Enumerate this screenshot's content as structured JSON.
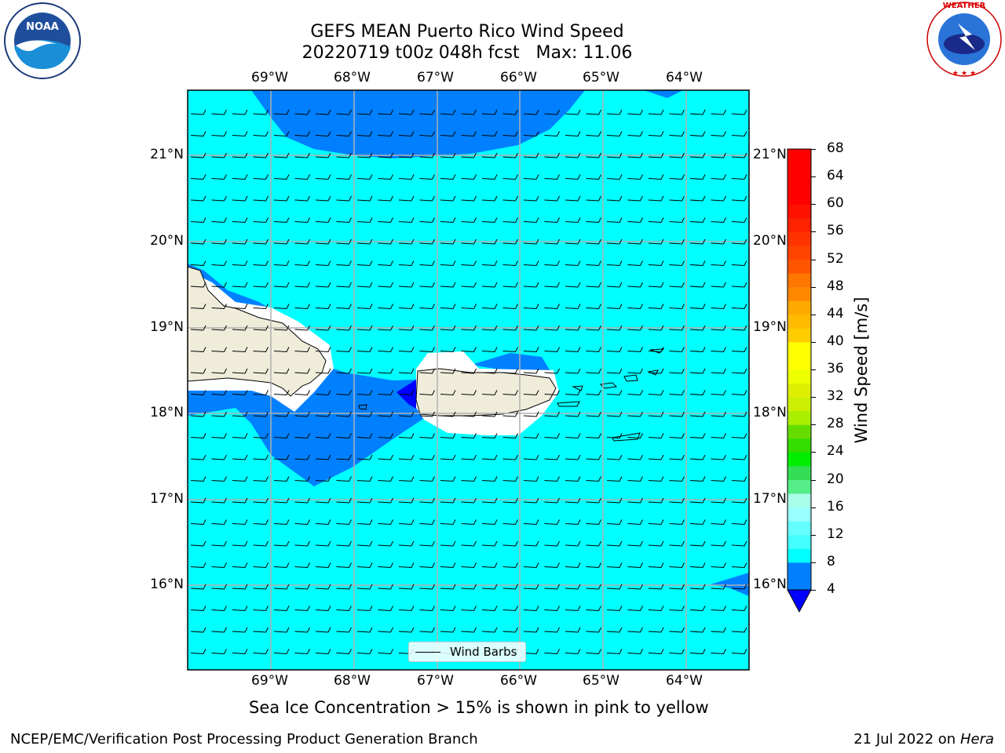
{
  "header": {
    "title_line1": "GEFS MEAN Puerto Rico Wind Speed",
    "title_line2": "20220719 t00z 048h fcst   Max: 11.06"
  },
  "logos": {
    "noaa_text": "NOAA",
    "nws_text": "NATIONAL WEATHER SERVICE"
  },
  "map": {
    "lon_labels": [
      "69°W",
      "68°W",
      "67°W",
      "66°W",
      "65°W",
      "64°W"
    ],
    "lat_labels": [
      "21°N",
      "20°N",
      "19°N",
      "18°N",
      "17°N",
      "16°N"
    ],
    "legend_label": "Wind Barbs",
    "colors": {
      "ocean": "#00ffff",
      "band_4_8": "#0080ff",
      "below_4": "#0000ff",
      "land": "#efedda",
      "grid": "#b0b0b0"
    }
  },
  "colorbar": {
    "label": "Wind Speed [m/s]",
    "ticks": [
      "4",
      "8",
      "12",
      "16",
      "20",
      "24",
      "28",
      "32",
      "36",
      "40",
      "44",
      "48",
      "52",
      "56",
      "60",
      "64",
      "68"
    ],
    "colors": [
      "#0080ff",
      "#00ffff",
      "#44ffff",
      "#99ffff",
      "#55ee77",
      "#33dd33",
      "#00ee00",
      "#66dd00",
      "#aaee00",
      "#ccff00",
      "#eeff00",
      "#ffff00",
      "#ffcc00",
      "#ffaa00",
      "#ff8800",
      "#ff5500",
      "#ff2200",
      "#ff0000"
    ],
    "underflow_color": "#0000ff"
  },
  "caption": "Sea Ice Concentration > 15% is shown in pink to yellow",
  "footer": {
    "left": "NCEP/EMC/Verification Post Processing Product Generation Branch",
    "right_prefix": "21 Jul 2022 on",
    "right_machine": "Hera"
  }
}
